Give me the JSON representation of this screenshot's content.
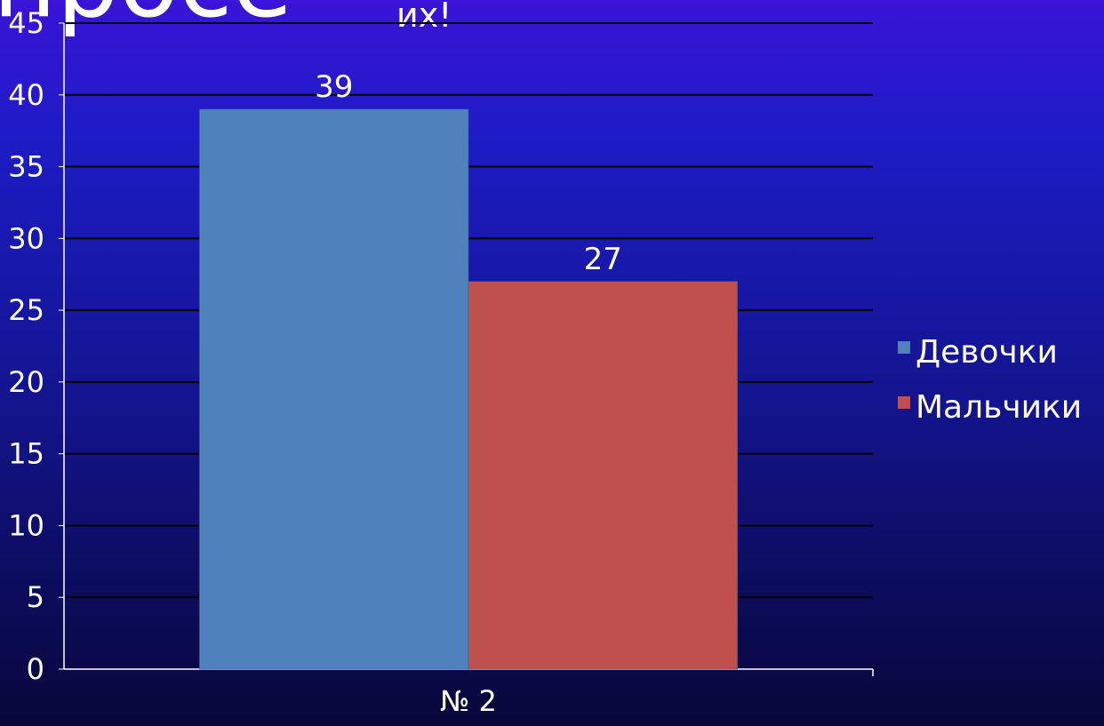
{
  "slide": {
    "title_fragment_left": "просе",
    "title_fragment_right": "их!"
  },
  "chart_data": {
    "type": "bar",
    "categories": [
      "№ 2"
    ],
    "series": [
      {
        "name": "Девочки",
        "values": [
          39
        ],
        "color": "#4f81bd"
      },
      {
        "name": "Мальчики",
        "values": [
          27
        ],
        "color": "#c0504d"
      }
    ],
    "ylim": [
      0,
      45
    ],
    "yticks": [
      0,
      5,
      10,
      15,
      20,
      25,
      30,
      35,
      40,
      45
    ],
    "grid": true,
    "legend": "right",
    "data_labels": true,
    "title": "",
    "xlabel": "",
    "ylabel": ""
  }
}
